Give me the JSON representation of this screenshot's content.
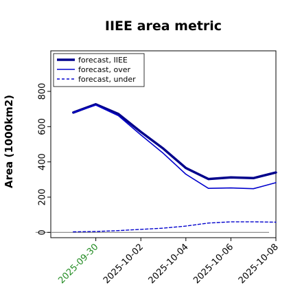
{
  "chart_data": {
    "type": "line",
    "title": "IIEE area metric",
    "ylabel": "Area (1000km2)",
    "xlabel": "",
    "x": [
      "2025-09-29",
      "2025-09-30",
      "2025-10-01",
      "2025-10-02",
      "2025-10-03",
      "2025-10-04",
      "2025-10-05",
      "2025-10-06",
      "2025-10-07",
      "2025-10-08"
    ],
    "xlim": [
      "2025-09-28",
      "2025-10-08"
    ],
    "ylim": [
      -30,
      1030
    ],
    "xticks": [
      "2025-09-30",
      "2025-10-02",
      "2025-10-04",
      "2025-10-06",
      "2025-10-08"
    ],
    "highlight_tick": "2025-09-30",
    "yticks": [
      0,
      200,
      400,
      600,
      800
    ],
    "grid": false,
    "legend_position": "top-left",
    "zero_line": true,
    "series": [
      {
        "name": "forecast, IIEE",
        "style": "thick-solid",
        "color": "#00008b",
        "values": [
          680,
          727,
          672,
          570,
          475,
          365,
          303,
          312,
          308,
          340
        ]
      },
      {
        "name": "forecast, over",
        "style": "solid",
        "color": "#0000cd",
        "values": [
          680,
          722,
          662,
          553,
          448,
          330,
          250,
          252,
          248,
          282
        ]
      },
      {
        "name": "forecast, under",
        "style": "dashed",
        "color": "#0000cd",
        "values": [
          3,
          5,
          10,
          17,
          24,
          36,
          53,
          60,
          60,
          58
        ]
      }
    ]
  },
  "colors": {
    "axis": "#000000",
    "zero_line": "#808080",
    "highlight_tick": "#228b22"
  }
}
